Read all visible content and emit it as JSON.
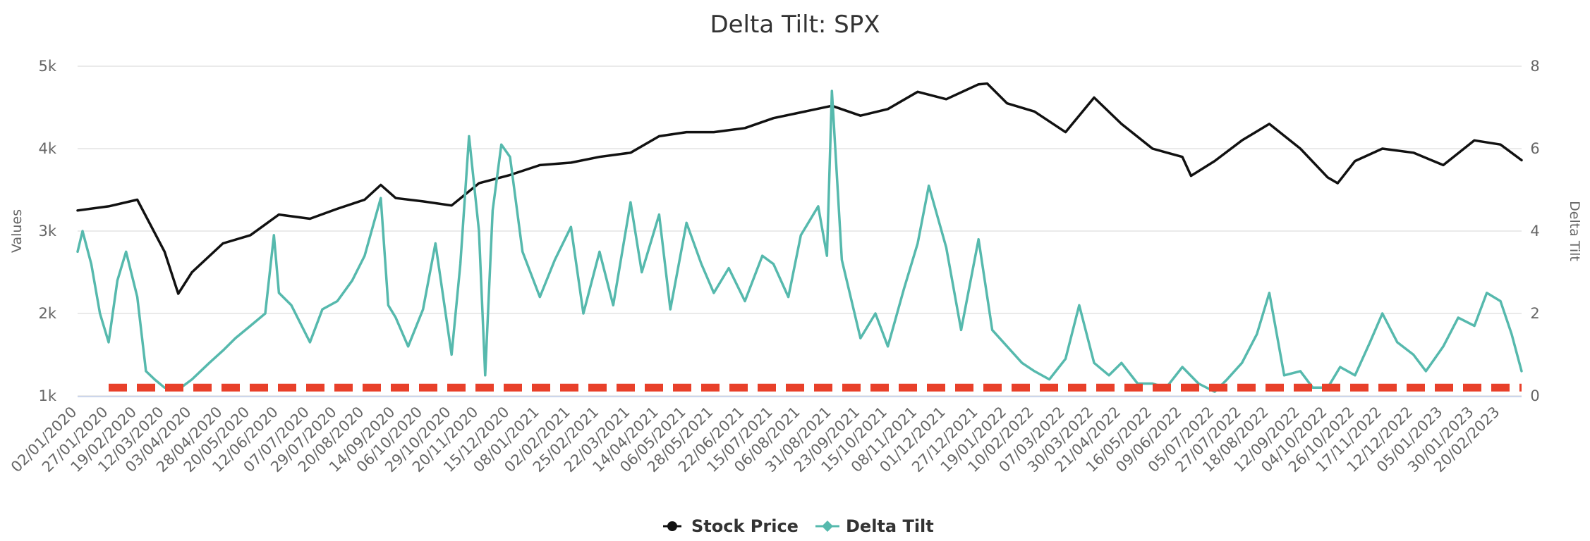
{
  "chart_data": {
    "type": "line",
    "title": "Delta Tilt: SPX",
    "y_left": {
      "label": "Values",
      "ticks": [
        1000,
        2000,
        3000,
        4000,
        5000
      ],
      "tick_labels": [
        "1k",
        "2k",
        "3k",
        "4k",
        "5k"
      ],
      "range": [
        1000,
        5000
      ]
    },
    "y_right": {
      "label": "Delta Tilt",
      "ticks": [
        0,
        2,
        4,
        6,
        8
      ],
      "tick_labels": [
        "0",
        "2",
        "4",
        "6",
        "8"
      ],
      "range": [
        0,
        8
      ]
    },
    "x_tick_labels": [
      "02/01/2020",
      "27/01/2020",
      "19/02/2020",
      "12/03/2020",
      "03/04/2020",
      "28/04/2020",
      "20/05/2020",
      "12/06/2020",
      "07/07/2020",
      "29/07/2020",
      "20/08/2020",
      "14/09/2020",
      "06/10/2020",
      "29/10/2020",
      "20/11/2020",
      "15/12/2020",
      "08/01/2021",
      "02/02/2021",
      "25/02/2021",
      "22/03/2021",
      "14/04/2021",
      "06/05/2021",
      "28/05/2021",
      "22/06/2021",
      "15/07/2021",
      "06/08/2021",
      "31/08/2021",
      "23/09/2021",
      "15/10/2021",
      "08/11/2021",
      "01/12/2021",
      "27/12/2021",
      "19/01/2022",
      "10/02/2022",
      "07/03/2022",
      "30/03/2022",
      "21/04/2022",
      "16/05/2022",
      "09/06/2022",
      "05/07/2022",
      "27/07/2022",
      "18/08/2022",
      "12/09/2022",
      "04/10/2022",
      "26/10/2022",
      "17/11/2022",
      "12/12/2022",
      "05/01/2023",
      "30/01/2023",
      "20/02/2023"
    ],
    "grid": true,
    "legend_position": "bottom-center",
    "series": [
      {
        "name": "Stock Price",
        "axis": "left",
        "color": "#111111",
        "marker": "circle",
        "x": [
          "02/01/2020",
          "27/01/2020",
          "19/02/2020",
          "12/03/2020",
          "23/03/2020",
          "03/04/2020",
          "28/04/2020",
          "20/05/2020",
          "12/06/2020",
          "07/07/2020",
          "29/07/2020",
          "20/08/2020",
          "02/09/2020",
          "14/09/2020",
          "06/10/2020",
          "29/10/2020",
          "20/11/2020",
          "15/12/2020",
          "08/01/2021",
          "02/02/2021",
          "25/02/2021",
          "22/03/2021",
          "14/04/2021",
          "06/05/2021",
          "28/05/2021",
          "22/06/2021",
          "15/07/2021",
          "06/08/2021",
          "31/08/2021",
          "23/09/2021",
          "15/10/2021",
          "08/11/2021",
          "01/12/2021",
          "27/12/2021",
          "03/01/2022",
          "19/01/2022",
          "10/02/2022",
          "07/03/2022",
          "30/03/2022",
          "21/04/2022",
          "16/05/2022",
          "09/06/2022",
          "16/06/2022",
          "05/07/2022",
          "27/07/2022",
          "18/08/2022",
          "12/09/2022",
          "04/10/2022",
          "12/10/2022",
          "26/10/2022",
          "17/11/2022",
          "12/12/2022",
          "05/01/2023",
          "30/01/2023",
          "20/02/2023",
          "09/03/2023"
        ],
        "y": [
          3250,
          3300,
          3380,
          2750,
          2240,
          2500,
          2850,
          2950,
          3200,
          3150,
          3270,
          3380,
          3560,
          3400,
          3360,
          3310,
          3580,
          3680,
          3800,
          3830,
          3900,
          3950,
          4150,
          4200,
          4200,
          4250,
          4370,
          4440,
          4520,
          4400,
          4480,
          4690,
          4600,
          4780,
          4790,
          4550,
          4450,
          4200,
          4620,
          4300,
          4000,
          3900,
          3670,
          3850,
          4100,
          4300,
          4000,
          3650,
          3580,
          3850,
          4000,
          3950,
          3800,
          4100,
          4050,
          3860
        ]
      },
      {
        "name": "Delta Tilt",
        "axis": "right",
        "color": "#56b9ad",
        "marker": "diamond",
        "x": [
          "02/01/2020",
          "06/01/2020",
          "13/01/2020",
          "20/01/2020",
          "27/01/2020",
          "03/02/2020",
          "10/02/2020",
          "19/02/2020",
          "26/02/2020",
          "04/03/2020",
          "12/03/2020",
          "23/03/2020",
          "03/04/2020",
          "17/04/2020",
          "28/04/2020",
          "08/05/2020",
          "20/05/2020",
          "01/06/2020",
          "08/06/2020",
          "12/06/2020",
          "22/06/2020",
          "07/07/2020",
          "17/07/2020",
          "29/07/2020",
          "10/08/2020",
          "20/08/2020",
          "02/09/2020",
          "08/09/2020",
          "14/09/2020",
          "24/09/2020",
          "06/10/2020",
          "16/10/2020",
          "29/10/2020",
          "05/11/2020",
          "12/11/2020",
          "20/11/2020",
          "25/11/2020",
          "01/12/2020",
          "08/12/2020",
          "15/12/2020",
          "25/12/2020",
          "08/01/2021",
          "20/01/2021",
          "02/02/2021",
          "12/02/2021",
          "25/02/2021",
          "08/03/2021",
          "22/03/2021",
          "31/03/2021",
          "14/04/2021",
          "23/04/2021",
          "06/05/2021",
          "18/05/2021",
          "28/05/2021",
          "09/06/2021",
          "22/06/2021",
          "06/07/2021",
          "15/07/2021",
          "27/07/2021",
          "06/08/2021",
          "20/08/2021",
          "27/08/2021",
          "31/08/2021",
          "08/09/2021",
          "23/09/2021",
          "05/10/2021",
          "15/10/2021",
          "28/10/2021",
          "08/11/2021",
          "17/11/2021",
          "01/12/2021",
          "13/12/2021",
          "27/12/2021",
          "07/01/2022",
          "19/01/2022",
          "31/01/2022",
          "10/02/2022",
          "22/02/2022",
          "07/03/2022",
          "18/03/2022",
          "30/03/2022",
          "11/04/2022",
          "21/04/2022",
          "04/05/2022",
          "16/05/2022",
          "27/05/2022",
          "09/06/2022",
          "22/06/2022",
          "05/07/2022",
          "15/07/2022",
          "27/07/2022",
          "08/08/2022",
          "18/08/2022",
          "30/08/2022",
          "12/09/2022",
          "22/09/2022",
          "04/10/2022",
          "14/10/2022",
          "26/10/2022",
          "07/11/2022",
          "17/11/2022",
          "29/11/2022",
          "12/12/2022",
          "22/12/2022",
          "05/01/2023",
          "17/01/2023",
          "30/01/2023",
          "09/02/2023",
          "20/02/2023",
          "01/03/2023",
          "09/03/2023"
        ],
        "y": [
          3.5,
          4.0,
          3.2,
          2.0,
          1.3,
          2.8,
          3.5,
          2.4,
          0.6,
          0.4,
          0.2,
          0.15,
          0.4,
          0.8,
          1.1,
          1.4,
          1.7,
          2.0,
          3.9,
          2.5,
          2.2,
          1.3,
          2.1,
          2.3,
          2.8,
          3.4,
          4.8,
          2.2,
          1.9,
          1.2,
          2.1,
          3.7,
          1.0,
          3.2,
          6.3,
          4.0,
          0.5,
          4.5,
          6.1,
          5.8,
          3.5,
          2.4,
          3.3,
          4.1,
          2.0,
          3.5,
          2.2,
          4.7,
          3.0,
          4.4,
          2.1,
          4.2,
          3.2,
          2.5,
          3.1,
          2.3,
          3.4,
          3.2,
          2.4,
          3.9,
          4.6,
          3.4,
          7.4,
          3.3,
          1.4,
          2.0,
          1.2,
          2.6,
          3.7,
          5.1,
          3.6,
          1.6,
          3.8,
          1.6,
          1.2,
          0.8,
          0.6,
          0.4,
          0.9,
          2.2,
          0.8,
          0.5,
          0.8,
          0.3,
          0.3,
          0.2,
          0.7,
          0.3,
          0.1,
          0.4,
          0.8,
          1.5,
          2.5,
          0.5,
          0.6,
          0.2,
          0.2,
          0.7,
          0.5,
          1.3,
          2.0,
          1.3,
          1.0,
          0.6,
          1.2,
          1.9,
          1.7,
          2.5,
          2.3,
          1.5,
          0.6
        ]
      },
      {
        "name": "",
        "axis": "right",
        "color": "#e8402a",
        "style": "dashed",
        "x": [
          "27/01/2020",
          "09/03/2023"
        ],
        "y": [
          0.2,
          0.2
        ]
      }
    ]
  }
}
